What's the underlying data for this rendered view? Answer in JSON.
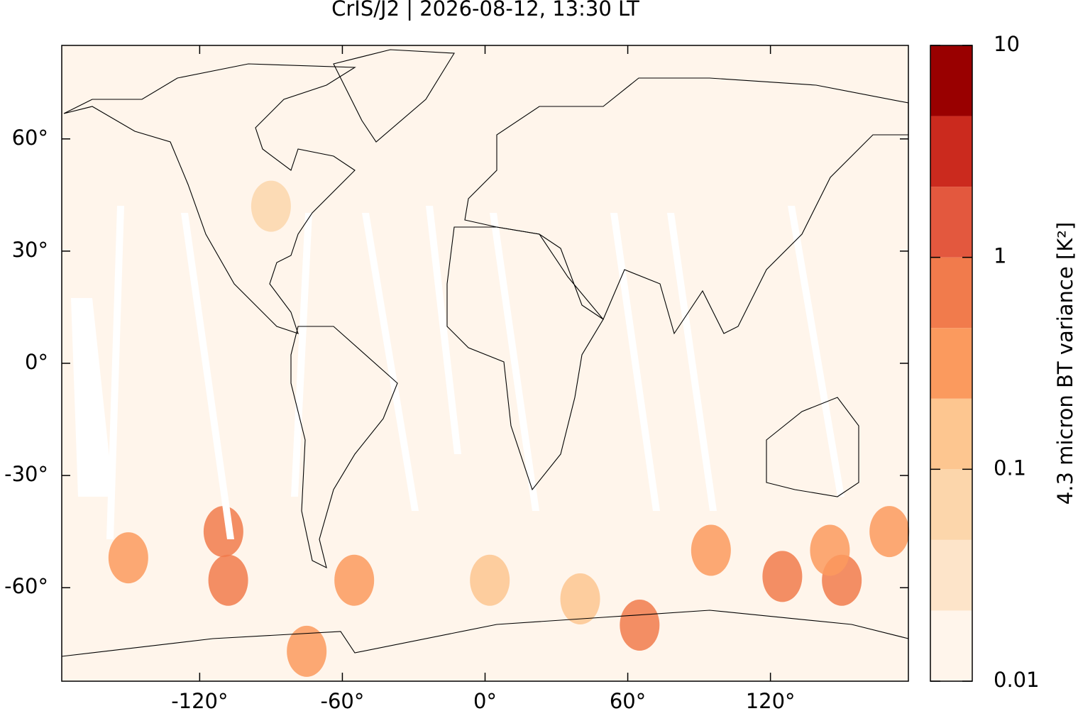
{
  "chart_data": {
    "type": "map",
    "title": "CrIS/J2 | 2026-08-12, 13:30 LT",
    "projection": "equirectangular",
    "xlim": [
      -178,
      178
    ],
    "ylim": [
      -85,
      85
    ],
    "xticks": [
      {
        "value": -120,
        "label": "-120°"
      },
      {
        "value": -60,
        "label": "-60°"
      },
      {
        "value": 0,
        "label": "0°"
      },
      {
        "value": 60,
        "label": "60°"
      },
      {
        "value": 120,
        "label": "120°"
      }
    ],
    "yticks": [
      {
        "value": -60,
        "label": "-60°"
      },
      {
        "value": -30,
        "label": "-30°"
      },
      {
        "value": 0,
        "label": "0°"
      },
      {
        "value": 30,
        "label": "30°"
      },
      {
        "value": 60,
        "label": "60°"
      }
    ],
    "colorbar": {
      "label": "4.3 micron BT variance [K²]",
      "log": true,
      "lim": [
        0.01,
        10
      ],
      "ticks": [
        0.01,
        0.1,
        1,
        10
      ],
      "colors": [
        "#fff5eb",
        "#fde4c9",
        "#fcd6ab",
        "#fdc690",
        "#fb9a5e",
        "#f17b4c",
        "#e3583e",
        "#cb2a1e",
        "#990000"
      ]
    },
    "hotspots": [
      {
        "lon": -150,
        "lat": -52,
        "value": 0.3
      },
      {
        "lon": -110,
        "lat": -45,
        "value": 0.5
      },
      {
        "lon": -108,
        "lat": -58,
        "value": 0.5
      },
      {
        "lon": -55,
        "lat": -58,
        "value": 0.4
      },
      {
        "lon": -75,
        "lat": -77,
        "value": 0.3
      },
      {
        "lon": 2,
        "lat": -58,
        "value": 0.2
      },
      {
        "lon": 40,
        "lat": -63,
        "value": 0.2
      },
      {
        "lon": 65,
        "lat": -70,
        "value": 0.5
      },
      {
        "lon": 95,
        "lat": -50,
        "value": 0.4
      },
      {
        "lon": 125,
        "lat": -57,
        "value": 0.5
      },
      {
        "lon": 150,
        "lat": -58,
        "value": 0.8
      },
      {
        "lon": 145,
        "lat": -50,
        "value": 0.4
      },
      {
        "lon": 170,
        "lat": -45,
        "value": 0.3
      },
      {
        "lon": -90,
        "lat": 42,
        "value": 0.06
      }
    ]
  }
}
